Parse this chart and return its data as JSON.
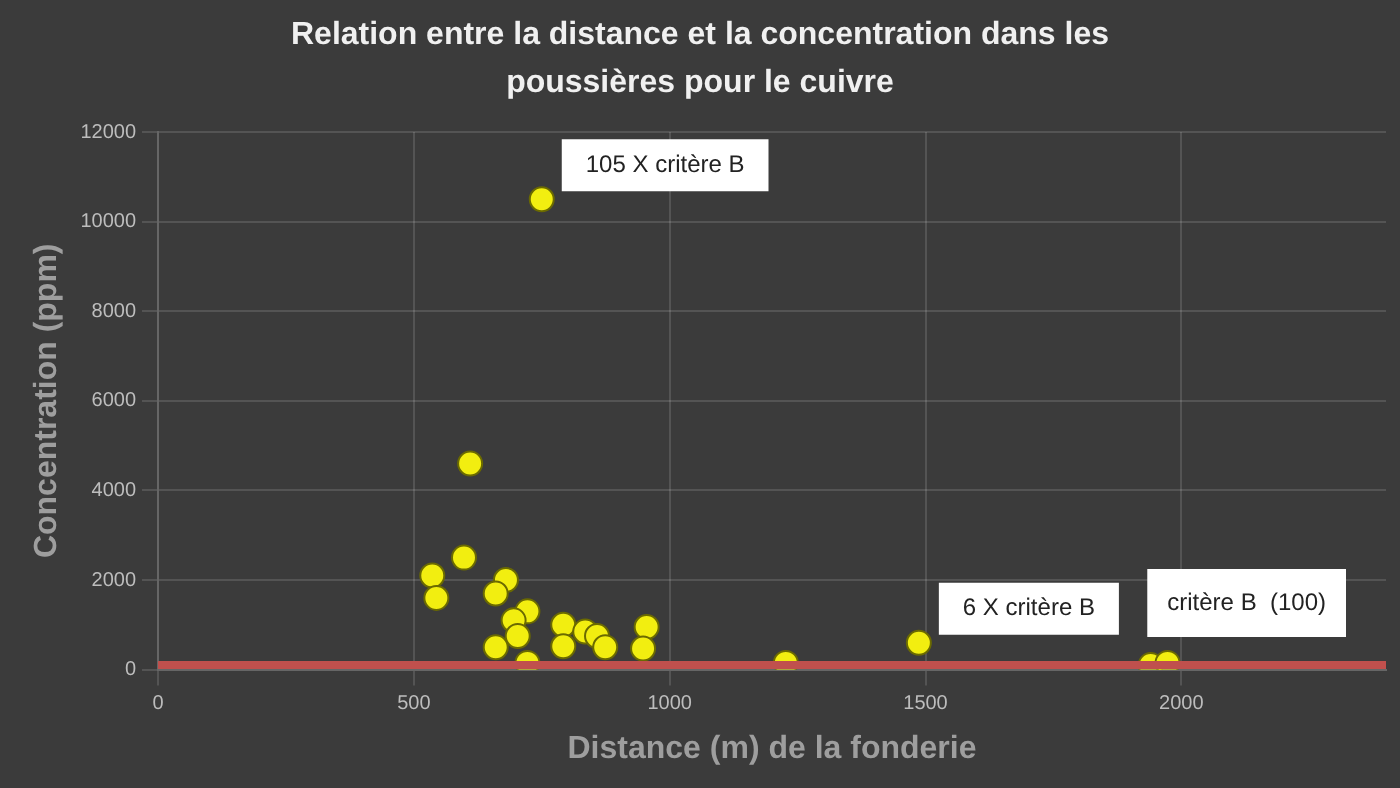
{
  "chart_data": {
    "type": "scatter",
    "title": "Relation entre la distance et la concentration dans les poussières pour le cuivre",
    "xlabel": "Distance (m) de la fonderie",
    "ylabel": "Concentration (ppm)",
    "x": [
      750,
      610,
      598,
      536,
      544,
      680,
      660,
      722,
      695,
      703,
      660,
      722,
      792,
      792,
      835,
      858,
      874,
      955,
      948,
      1227,
      1487,
      1940,
      1973
    ],
    "series": [
      {
        "color": "#f2ee10",
        "values": [
          10500,
          4600,
          2500,
          2100,
          1600,
          2000,
          1700,
          1300,
          1100,
          750,
          500,
          150,
          1000,
          520,
          850,
          750,
          500,
          950,
          470,
          150,
          600,
          100,
          150
        ]
      }
    ],
    "xlim": [
      0,
      2400
    ],
    "xticks": [
      0,
      500,
      1000,
      1500,
      2000
    ],
    "ylim": [
      0,
      12000
    ],
    "yticks": [
      0,
      2000,
      4000,
      6000,
      8000,
      10000,
      12000
    ],
    "grid": true,
    "marker": "circle",
    "legend": false,
    "ref_lines": [
      {
        "axis": "y",
        "value": 100,
        "label": "critère B  (100)",
        "color": "#c0504d"
      }
    ],
    "annotations": [
      {
        "text": "105 X critère B",
        "x": 750,
        "y": 10500
      },
      {
        "text": "6 X critère B",
        "x": 1487,
        "y": 600
      }
    ]
  }
}
